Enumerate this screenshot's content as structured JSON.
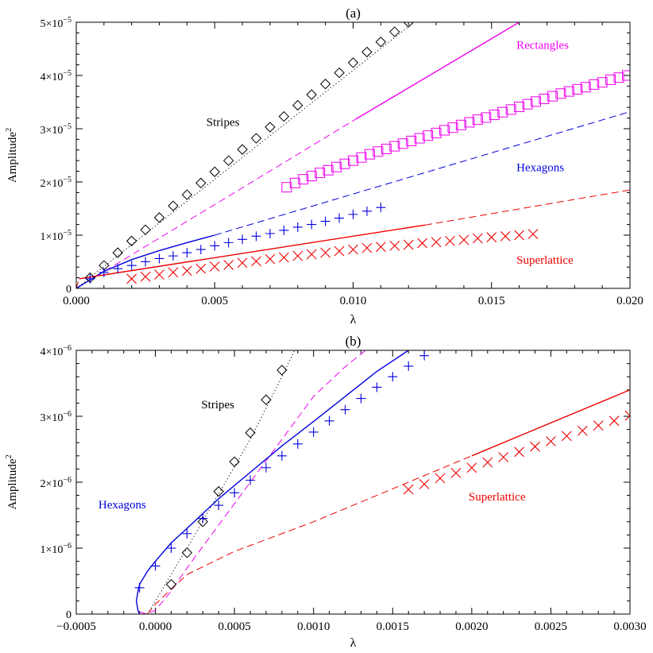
{
  "chart_data": [
    {
      "type": "line",
      "panel_label": "(a)",
      "xlabel": "λ",
      "ylabel": "Amplitude",
      "ylabel_exp": "2",
      "xlim": [
        0.0,
        0.02
      ],
      "ylim": [
        0,
        5e-05
      ],
      "xticks": [
        0.0,
        0.005,
        0.01,
        0.015,
        0.02
      ],
      "xtick_labels": [
        "0.000",
        "0.005",
        "0.010",
        "0.015",
        "0.020"
      ],
      "yticks": [
        0,
        1e-05,
        2e-05,
        3e-05,
        4e-05,
        5e-05
      ],
      "ytick_labels": [
        {
          "base": "0",
          "exp": ""
        },
        {
          "base": "1×10",
          "exp": "−5"
        },
        {
          "base": "2×10",
          "exp": "−5"
        },
        {
          "base": "3×10",
          "exp": "−5"
        },
        {
          "base": "4×10",
          "exp": "−5"
        },
        {
          "base": "5×10",
          "exp": "−5"
        }
      ],
      "annotations": [
        {
          "text": "Stripes",
          "x": 0.0047,
          "y": 3.05e-05,
          "color": "#000000"
        },
        {
          "text": "Rectangles",
          "x": 0.0159,
          "y": 4.5e-05,
          "color": "#ee00ee"
        },
        {
          "text": "Hexagons",
          "x": 0.0159,
          "y": 2.2e-05,
          "color": "#0000dd"
        },
        {
          "text": "Superlattice",
          "x": 0.0159,
          "y": 4.6e-06,
          "color": "#ee0000"
        }
      ],
      "series": [
        {
          "style": "dotted",
          "color": "#000000",
          "x": [
            0.0,
            0.0122
          ],
          "y": [
            0.0,
            5e-05
          ]
        },
        {
          "style": "solid",
          "color": "#ee00ee",
          "x": [
            0.0101,
            0.016
          ],
          "y": [
            3.18e-05,
            5e-05
          ]
        },
        {
          "style": "dashed",
          "color": "#ee00ee",
          "x": [
            0.0,
            0.0101
          ],
          "y": [
            0.0,
            3.18e-05
          ]
        },
        {
          "style": "solid",
          "color": "#0000dd",
          "x": [
            0.0,
            0.001,
            0.002,
            0.003,
            0.004,
            0.005
          ],
          "y": [
            0.0,
            3.2e-06,
            5.4e-06,
            7.1e-06,
            8.6e-06,
            1e-05
          ]
        },
        {
          "style": "dashed",
          "color": "#0000dd",
          "x": [
            0.005,
            0.02
          ],
          "y": [
            1e-05,
            3.32e-05
          ]
        },
        {
          "style": "solid",
          "color": "#ee0000",
          "x": [
            0.0001,
            0.0126
          ],
          "y": [
            1.8e-06,
            1.19e-05
          ]
        },
        {
          "style": "dashed",
          "color": "#ee0000",
          "x": [
            0.0,
            0.0001
          ],
          "y": [
            0.0,
            1.8e-06
          ]
        },
        {
          "style": "dashed",
          "color": "#ee0000",
          "x": [
            0.0126,
            0.02
          ],
          "y": [
            1.19e-05,
            1.85e-05
          ]
        }
      ],
      "markers": [
        {
          "symbol": "diamond",
          "color": "#000000",
          "x": [
            0.0005,
            0.001,
            0.0015,
            0.002,
            0.0025,
            0.003,
            0.0035,
            0.004,
            0.0045,
            0.005,
            0.0055,
            0.006,
            0.0065,
            0.007,
            0.0075,
            0.008,
            0.0085,
            0.009,
            0.0095,
            0.01,
            0.0105,
            0.011,
            0.0115,
            0.012
          ],
          "y": [
            2e-06,
            4.3e-06,
            6.7e-06,
            8.9e-06,
            1.1e-05,
            1.33e-05,
            1.55e-05,
            1.76e-05,
            1.98e-05,
            2.19e-05,
            2.4e-05,
            2.61e-05,
            2.82e-05,
            3.03e-05,
            3.23e-05,
            3.44e-05,
            3.64e-05,
            3.84e-05,
            4.05e-05,
            4.24e-05,
            4.44e-05,
            4.63e-05,
            4.82e-05,
            5e-05
          ]
        },
        {
          "symbol": "square",
          "color": "#ee00ee",
          "x": [
            0.0076,
            0.0079,
            0.0082,
            0.0085,
            0.0088,
            0.0091,
            0.0094,
            0.0097,
            0.01,
            0.0103,
            0.0106,
            0.0109,
            0.0112,
            0.0115,
            0.0118,
            0.0121,
            0.0124,
            0.0127,
            0.013,
            0.0133,
            0.0136,
            0.0139,
            0.0142,
            0.0145,
            0.0148,
            0.0151,
            0.0154,
            0.0157,
            0.016,
            0.0163,
            0.0166,
            0.0169,
            0.0172,
            0.0175,
            0.0178,
            0.0181,
            0.0184,
            0.0187,
            0.019,
            0.0193,
            0.0196,
            0.0199
          ],
          "y": [
            1.9e-05,
            1.98e-05,
            2.05e-05,
            2.11e-05,
            2.17e-05,
            2.22e-05,
            2.28e-05,
            2.34e-05,
            2.4e-05,
            2.46e-05,
            2.52e-05,
            2.57e-05,
            2.62e-05,
            2.67e-05,
            2.72e-05,
            2.77e-05,
            2.82e-05,
            2.87e-05,
            2.92e-05,
            2.97e-05,
            3.02e-05,
            3.07e-05,
            3.12e-05,
            3.17e-05,
            3.21e-05,
            3.26e-05,
            3.31e-05,
            3.36e-05,
            3.41e-05,
            3.46e-05,
            3.51e-05,
            3.56e-05,
            3.61e-05,
            3.66e-05,
            3.7e-05,
            3.74e-05,
            3.78e-05,
            3.83e-05,
            3.87e-05,
            3.92e-05,
            3.96e-05,
            4e-05
          ]
        },
        {
          "symbol": "plus",
          "color": "#0000dd",
          "x": [
            0.0005,
            0.001,
            0.0015,
            0.002,
            0.0025,
            0.003,
            0.0035,
            0.004,
            0.0045,
            0.005,
            0.0055,
            0.006,
            0.0065,
            0.007,
            0.0075,
            0.008,
            0.0085,
            0.009,
            0.0095,
            0.01,
            0.0105,
            0.011
          ],
          "y": [
            1.8e-06,
            3e-06,
            3.7e-06,
            4.3e-06,
            5e-06,
            5.6e-06,
            6.1e-06,
            6.7e-06,
            7.3e-06,
            8e-06,
            8.6e-06,
            9.2e-06,
            9.8e-06,
            1.03e-05,
            1.09e-05,
            1.15e-05,
            1.2e-05,
            1.26e-05,
            1.32e-05,
            1.39e-05,
            1.45e-05,
            1.52e-05
          ]
        },
        {
          "symbol": "x",
          "color": "#ee0000",
          "x": [
            0.002,
            0.0025,
            0.003,
            0.0035,
            0.004,
            0.0045,
            0.005,
            0.0055,
            0.006,
            0.0065,
            0.007,
            0.0075,
            0.008,
            0.0085,
            0.009,
            0.0095,
            0.01,
            0.0105,
            0.011,
            0.0115,
            0.012,
            0.0125,
            0.013,
            0.0135,
            0.014,
            0.0145,
            0.015,
            0.0155,
            0.016,
            0.0165
          ],
          "y": [
            1.8e-06,
            2.2e-06,
            2.6e-06,
            3e-06,
            3.3e-06,
            3.7e-06,
            4.1e-06,
            4.4e-06,
            4.8e-06,
            5.1e-06,
            5.5e-06,
            5.8e-06,
            6.1e-06,
            6.4e-06,
            6.7e-06,
            7e-06,
            7.3e-06,
            7.6e-06,
            7.8e-06,
            8e-06,
            8.2e-06,
            8.5e-06,
            8.7e-06,
            8.9e-06,
            9.1e-06,
            9.4e-06,
            9.6e-06,
            9.8e-06,
            1e-05,
            1.02e-05
          ]
        }
      ]
    },
    {
      "type": "line",
      "panel_label": "(b)",
      "xlabel": "λ",
      "ylabel": "Amplitude",
      "ylabel_exp": "2",
      "xlim": [
        -0.0005,
        0.003
      ],
      "ylim": [
        0,
        4e-06
      ],
      "xticks": [
        -0.0005,
        0.0,
        0.0005,
        0.001,
        0.0015,
        0.002,
        0.0025,
        0.003
      ],
      "xtick_labels": [
        "−0.0005",
        "0.0000",
        "0.0005",
        "0.0010",
        "0.0015",
        "0.0020",
        "0.0025",
        "0.0030"
      ],
      "yticks": [
        0,
        1e-06,
        2e-06,
        3e-06,
        4e-06
      ],
      "ytick_labels": [
        {
          "base": "0",
          "exp": ""
        },
        {
          "base": "1×10",
          "exp": "−6"
        },
        {
          "base": "2×10",
          "exp": "−6"
        },
        {
          "base": "3×10",
          "exp": "−6"
        },
        {
          "base": "4×10",
          "exp": "−6"
        }
      ],
      "annotations": [
        {
          "text": "Stripes",
          "x": 0.00029,
          "y": 3.12e-06,
          "color": "#000000"
        },
        {
          "text": "Hexagons",
          "x": -0.00036,
          "y": 1.6e-06,
          "color": "#0000dd"
        },
        {
          "text": "Superlattice",
          "x": 0.00198,
          "y": 1.72e-06,
          "color": "#ee0000"
        }
      ],
      "series": [
        {
          "style": "dotted",
          "color": "#000000",
          "x": [
            -5e-05,
            0.0,
            0.0002,
            0.0004,
            0.0006,
            0.0008,
            0.00088
          ],
          "y": [
            0.0,
            2e-07,
            1e-06,
            1.82e-06,
            2.65e-06,
            3.6e-06,
            4e-06
          ]
        },
        {
          "style": "dashed",
          "color": "#ee00ee",
          "x": [
            -0.0001,
            -5e-05,
            0.0,
            5e-05,
            0.0001,
            0.0002,
            0.0004,
            0.0006,
            0.0008,
            0.001,
            0.0012,
            0.00133
          ],
          "y": [
            3e-08,
            0.0,
            6e-08,
            2e-07,
            3.5e-07,
            7e-07,
            1.35e-06,
            2e-06,
            2.65e-06,
            3.3e-06,
            3.75e-06,
            4e-06
          ]
        },
        {
          "style": "solid",
          "color": "#0000dd",
          "x": [
            -0.0001,
            -0.00011,
            -0.00012,
            -0.00011,
            -0.0001,
            -5e-05,
            0.0,
            0.0001,
            0.0002,
            0.0004,
            0.0006,
            0.0008,
            0.001,
            0.0012,
            0.0014,
            0.0016
          ],
          "y": [
            0.0,
            5e-08,
            2e-07,
            3.5e-07,
            4.5e-07,
            6.5e-07,
            8e-07,
            1.08e-06,
            1.3e-06,
            1.75e-06,
            2.15e-06,
            2.55e-06,
            2.92e-06,
            3.3e-06,
            3.68e-06,
            4e-06
          ]
        },
        {
          "style": "dashed",
          "color": "#ee0000",
          "x": [
            -5e-05,
            0.0,
            0.0002,
            0.0005,
            0.001,
            0.0015,
            0.002
          ],
          "y": [
            0.0,
            1.5e-07,
            6e-07,
            9.5e-07,
            1.4e-06,
            1.9e-06,
            2.4e-06
          ]
        },
        {
          "style": "solid",
          "color": "#ee0000",
          "x": [
            0.002,
            0.003
          ],
          "y": [
            2.4e-06,
            3.4e-06
          ]
        }
      ],
      "markers": [
        {
          "symbol": "diamond",
          "color": "#000000",
          "x": [
            0.0001,
            0.0002,
            0.0003,
            0.0004,
            0.0005,
            0.0006,
            0.0007,
            0.0008
          ],
          "y": [
            4.5e-07,
            9.3e-07,
            1.4e-06,
            1.86e-06,
            2.31e-06,
            2.75e-06,
            3.25e-06,
            3.7e-06
          ]
        },
        {
          "symbol": "plus",
          "color": "#0000dd",
          "x": [
            -0.0001,
            0.0,
            0.0001,
            0.0002,
            0.0003,
            0.0004,
            0.0005,
            0.0006,
            0.0007,
            0.0008,
            0.0009,
            0.001,
            0.0011,
            0.0012,
            0.0013,
            0.0014,
            0.0015,
            0.0016,
            0.0017
          ],
          "y": [
            4e-07,
            7.3e-07,
            1e-06,
            1.22e-06,
            1.45e-06,
            1.65e-06,
            1.84e-06,
            2.03e-06,
            2.22e-06,
            2.4e-06,
            2.58e-06,
            2.76e-06,
            2.93e-06,
            3.1e-06,
            3.27e-06,
            3.44e-06,
            3.6e-06,
            3.76e-06,
            3.92e-06
          ]
        },
        {
          "symbol": "x",
          "color": "#ee0000",
          "x": [
            0.0016,
            0.0017,
            0.0018,
            0.0019,
            0.002,
            0.0021,
            0.0022,
            0.0023,
            0.0024,
            0.0025,
            0.0026,
            0.0027,
            0.0028,
            0.0029,
            0.003
          ],
          "y": [
            1.89e-06,
            1.97e-06,
            2.06e-06,
            2.14e-06,
            2.22e-06,
            2.3e-06,
            2.38e-06,
            2.46e-06,
            2.54e-06,
            2.62e-06,
            2.7e-06,
            2.78e-06,
            2.86e-06,
            2.93e-06,
            3.01e-06
          ]
        }
      ]
    }
  ]
}
